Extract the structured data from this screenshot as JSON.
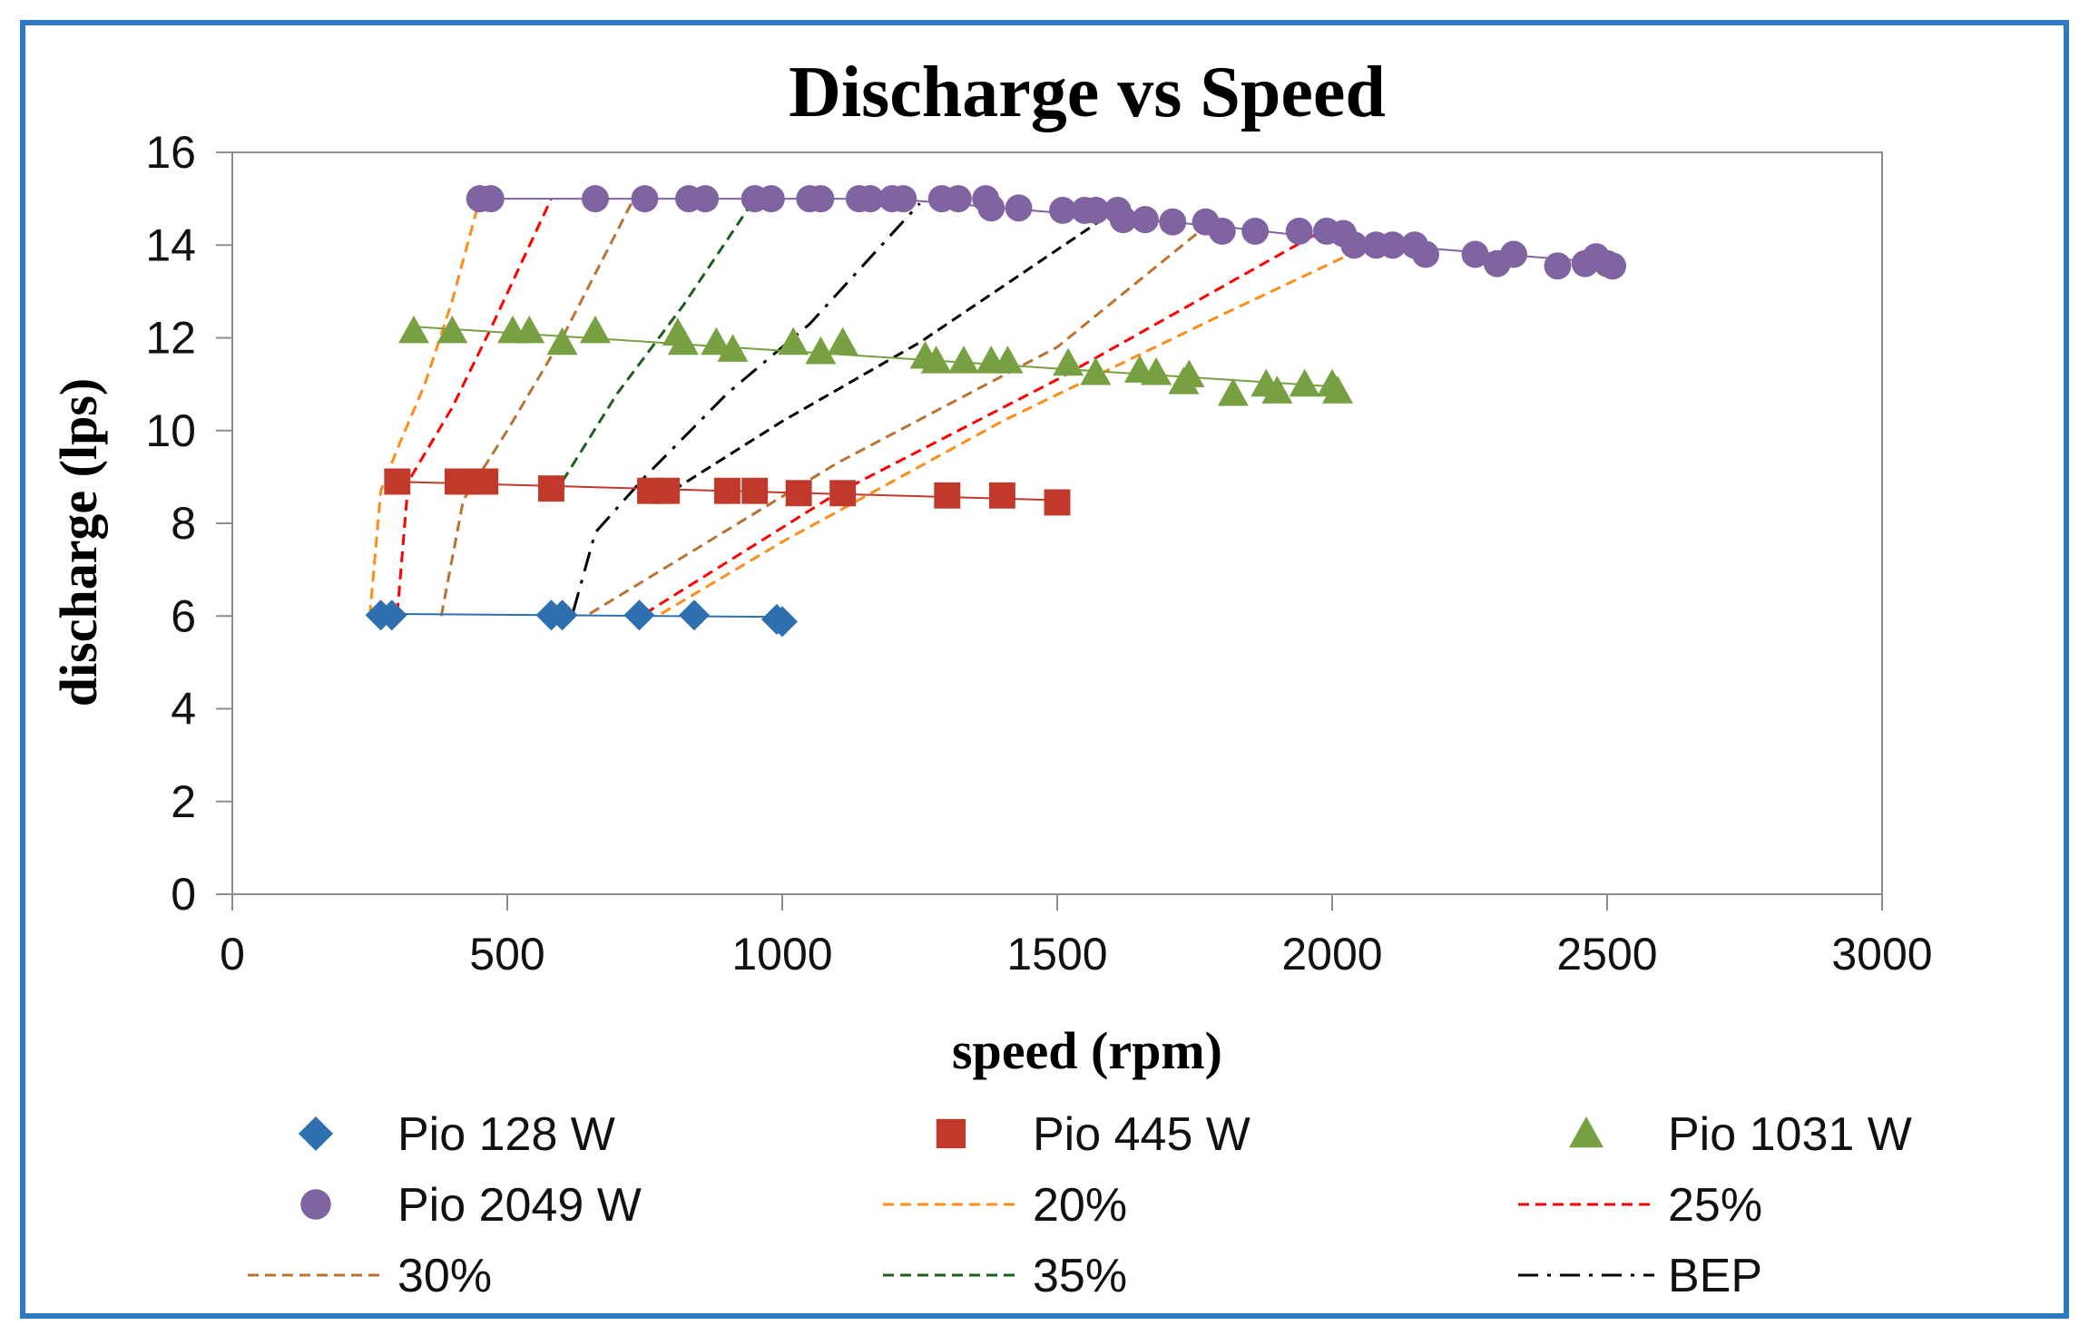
{
  "chart_data": {
    "type": "scatter",
    "title": "Discharge vs Speed",
    "xlabel": "speed (rpm)",
    "ylabel": "discharge (lps)",
    "xlim": [
      0,
      3000
    ],
    "ylim": [
      0,
      16
    ],
    "xticks": [
      0,
      500,
      1000,
      1500,
      2000,
      2500,
      3000
    ],
    "yticks": [
      0,
      2,
      4,
      6,
      8,
      10,
      12,
      14,
      16
    ],
    "xtick_labels": [
      "0",
      "500",
      "1000",
      "1500",
      "2000",
      "2500",
      "3000"
    ],
    "ytick_labels": [
      "0",
      "2",
      "4",
      "6",
      "8",
      "10",
      "12",
      "14",
      "16"
    ],
    "grid": false,
    "legend_position": "bottom",
    "series": [
      {
        "name": "Pio 128 W",
        "kind": "markers",
        "marker": "diamond",
        "color": "#2e6fb0",
        "trend": [
          [
            250,
            6.05
          ],
          [
            1000,
            5.98
          ]
        ],
        "points": [
          [
            270,
            6.02
          ],
          [
            290,
            6.02
          ],
          [
            580,
            6.02
          ],
          [
            600,
            6.02
          ],
          [
            740,
            6.02
          ],
          [
            840,
            6.02
          ],
          [
            990,
            5.93
          ],
          [
            1000,
            5.88
          ]
        ]
      },
      {
        "name": "Pio 445 W",
        "kind": "markers",
        "marker": "square",
        "color": "#c0392b",
        "trend": [
          [
            290,
            8.9
          ],
          [
            1500,
            8.5
          ]
        ],
        "points": [
          [
            300,
            8.9
          ],
          [
            410,
            8.9
          ],
          [
            440,
            8.9
          ],
          [
            460,
            8.9
          ],
          [
            580,
            8.75
          ],
          [
            760,
            8.7
          ],
          [
            790,
            8.7
          ],
          [
            900,
            8.7
          ],
          [
            950,
            8.7
          ],
          [
            1030,
            8.65
          ],
          [
            1110,
            8.65
          ],
          [
            1300,
            8.6
          ],
          [
            1400,
            8.6
          ],
          [
            1500,
            8.45
          ]
        ]
      },
      {
        "name": "Pio 1031 W",
        "kind": "markers",
        "marker": "triangle",
        "color": "#77a042",
        "trend": [
          [
            320,
            12.25
          ],
          [
            2000,
            10.95
          ]
        ],
        "points": [
          [
            330,
            12.15
          ],
          [
            400,
            12.15
          ],
          [
            510,
            12.15
          ],
          [
            540,
            12.15
          ],
          [
            600,
            11.9
          ],
          [
            660,
            12.15
          ],
          [
            810,
            12.1
          ],
          [
            820,
            11.9
          ],
          [
            880,
            11.9
          ],
          [
            910,
            11.75
          ],
          [
            1020,
            11.9
          ],
          [
            1070,
            11.7
          ],
          [
            1110,
            11.9
          ],
          [
            1260,
            11.6
          ],
          [
            1280,
            11.5
          ],
          [
            1330,
            11.5
          ],
          [
            1380,
            11.5
          ],
          [
            1410,
            11.5
          ],
          [
            1520,
            11.45
          ],
          [
            1570,
            11.25
          ],
          [
            1650,
            11.3
          ],
          [
            1680,
            11.25
          ],
          [
            1740,
            11.2
          ],
          [
            1730,
            11.05
          ],
          [
            1820,
            10.8
          ],
          [
            1880,
            11.0
          ],
          [
            1900,
            10.85
          ],
          [
            1950,
            11.0
          ],
          [
            2000,
            11.0
          ],
          [
            2010,
            10.85
          ]
        ]
      },
      {
        "name": "Pio 2049 W",
        "kind": "markers",
        "marker": "circle",
        "color": "#8064a2",
        "trend": [
          [
            440,
            15.0
          ],
          [
            1200,
            15.0
          ],
          [
            1800,
            14.4
          ],
          [
            2100,
            14.0
          ],
          [
            2520,
            13.6
          ]
        ],
        "points": [
          [
            450,
            15.0
          ],
          [
            470,
            15.0
          ],
          [
            660,
            15.0
          ],
          [
            750,
            15.0
          ],
          [
            830,
            15.0
          ],
          [
            860,
            15.0
          ],
          [
            950,
            15.0
          ],
          [
            980,
            15.0
          ],
          [
            1050,
            15.0
          ],
          [
            1070,
            15.0
          ],
          [
            1140,
            15.0
          ],
          [
            1160,
            15.0
          ],
          [
            1200,
            15.0
          ],
          [
            1220,
            15.0
          ],
          [
            1290,
            15.0
          ],
          [
            1320,
            15.0
          ],
          [
            1370,
            15.0
          ],
          [
            1380,
            14.8
          ],
          [
            1430,
            14.8
          ],
          [
            1510,
            14.75
          ],
          [
            1550,
            14.75
          ],
          [
            1570,
            14.75
          ],
          [
            1610,
            14.75
          ],
          [
            1620,
            14.55
          ],
          [
            1660,
            14.55
          ],
          [
            1710,
            14.5
          ],
          [
            1770,
            14.5
          ],
          [
            1800,
            14.3
          ],
          [
            1860,
            14.3
          ],
          [
            1940,
            14.3
          ],
          [
            1990,
            14.3
          ],
          [
            2020,
            14.25
          ],
          [
            2040,
            14.0
          ],
          [
            2080,
            14.0
          ],
          [
            2110,
            14.0
          ],
          [
            2150,
            14.0
          ],
          [
            2170,
            13.8
          ],
          [
            2260,
            13.8
          ],
          [
            2300,
            13.6
          ],
          [
            2330,
            13.8
          ],
          [
            2410,
            13.55
          ],
          [
            2460,
            13.6
          ],
          [
            2480,
            13.75
          ],
          [
            2500,
            13.6
          ],
          [
            2510,
            13.55
          ]
        ]
      },
      {
        "name": "20%",
        "kind": "line",
        "dash": "dashed",
        "color": "#ff8c1a",
        "points": [
          [
            250,
            6.0
          ],
          [
            270,
            8.7
          ],
          [
            300,
            9.6
          ],
          [
            350,
            11.0
          ],
          [
            400,
            12.8
          ],
          [
            450,
            15.0
          ]
        ]
      },
      {
        "name": "25%",
        "kind": "line",
        "dash": "dashed",
        "color": "#ff0000",
        "points": [
          [
            300,
            6.05
          ],
          [
            320,
            8.9
          ],
          [
            400,
            10.5
          ],
          [
            470,
            12.2
          ],
          [
            580,
            15.0
          ]
        ]
      },
      {
        "name": "30%",
        "kind": "line",
        "dash": "dashed",
        "color": "#b87333",
        "points": [
          [
            380,
            6.0
          ],
          [
            420,
            8.5
          ],
          [
            500,
            10.0
          ],
          [
            600,
            12.0
          ],
          [
            730,
            15.0
          ]
        ]
      },
      {
        "name": "35%",
        "kind": "line",
        "dash": "dashed",
        "color": "#1e5e1e",
        "points": [
          [
            600,
            8.9
          ],
          [
            700,
            10.8
          ],
          [
            820,
            12.7
          ],
          [
            950,
            15.0
          ]
        ]
      },
      {
        "name": "BEP",
        "kind": "line",
        "dash": "dashdot",
        "color": "#000000",
        "points": [
          [
            620,
            6.1
          ],
          [
            660,
            7.8
          ],
          [
            750,
            9.0
          ],
          [
            900,
            10.8
          ],
          [
            1050,
            12.3
          ],
          [
            1250,
            14.9
          ]
        ]
      },
      {
        "name": "20%",
        "kind": "line",
        "dash": "dashed",
        "color": "#ff8c1a",
        "legend": false,
        "points": [
          [
            780,
            6.05
          ],
          [
            1000,
            7.6
          ],
          [
            1400,
            10.2
          ],
          [
            1800,
            12.5
          ],
          [
            2050,
            13.9
          ]
        ]
      },
      {
        "name": "25%",
        "kind": "line",
        "dash": "dashed",
        "color": "#ff0000",
        "legend": false,
        "points": [
          [
            750,
            6.05
          ],
          [
            1100,
            8.65
          ],
          [
            1500,
            11.1
          ],
          [
            1980,
            14.3
          ]
        ]
      },
      {
        "name": "30%",
        "kind": "line",
        "dash": "dashed",
        "color": "#b87333",
        "legend": false,
        "points": [
          [
            650,
            6.05
          ],
          [
            1100,
            9.3
          ],
          [
            1500,
            11.8
          ],
          [
            1780,
            14.5
          ]
        ]
      },
      {
        "name": "BEP",
        "kind": "line",
        "dash": "dashed",
        "color": "#000000",
        "legend": false,
        "points": [
          [
            800,
            8.7
          ],
          [
            1000,
            10.2
          ],
          [
            1250,
            11.9
          ],
          [
            1600,
            14.7
          ]
        ]
      }
    ]
  }
}
